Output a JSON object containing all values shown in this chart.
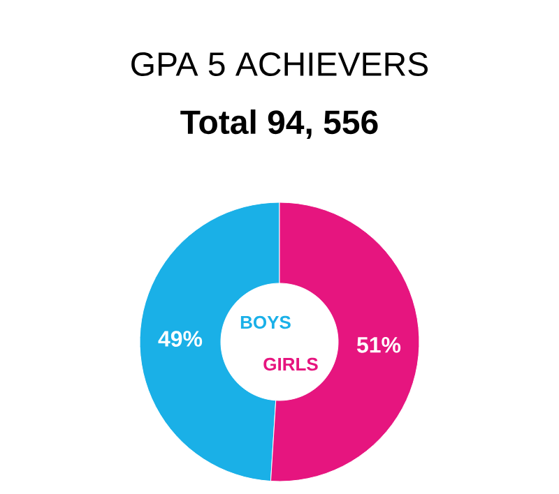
{
  "chart_data": {
    "type": "donut",
    "title": "GPA 5 ACHIEVERS",
    "subtitle": "Total 94, 556",
    "categories": [
      "BOYS",
      "GIRLS"
    ],
    "values": [
      49,
      51
    ],
    "colors": [
      "#1ab0e8",
      "#e6157f"
    ],
    "value_labels": [
      "49%",
      "51%"
    ]
  }
}
